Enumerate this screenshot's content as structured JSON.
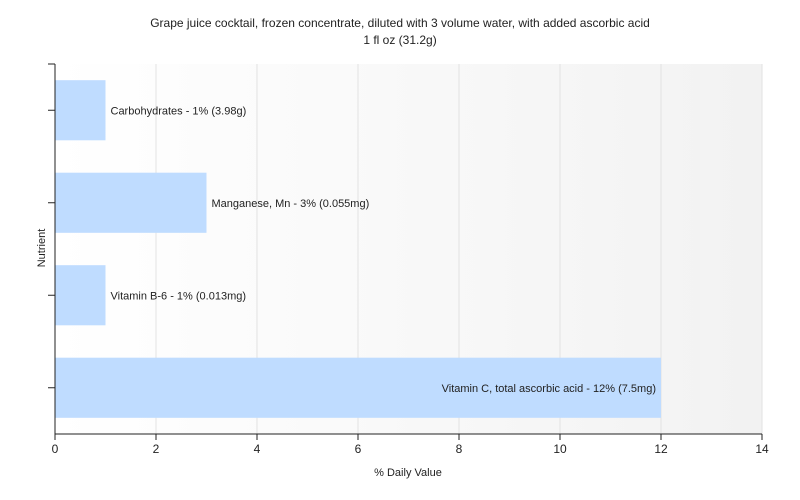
{
  "chart_data": {
    "type": "bar",
    "orientation": "horizontal",
    "title": "Grape juice cocktail, frozen concentrate, diluted with 3 volume water, with added ascorbic acid",
    "subtitle": "1 fl oz (31.2g)",
    "xlabel": "% Daily Value",
    "ylabel": "Nutrient",
    "xlim": [
      0,
      14
    ],
    "xticks": [
      0,
      2,
      4,
      6,
      8,
      10,
      12,
      14
    ],
    "grid": true,
    "categories": [
      "Carbohydrates",
      "Manganese, Mn",
      "Vitamin B-6",
      "Vitamin C, total ascorbic acid"
    ],
    "values": [
      1,
      3,
      1,
      12
    ],
    "labels": [
      "Carbohydrates - 1% (3.98g)",
      "Manganese, Mn - 3% (0.055mg)",
      "Vitamin B-6 - 1% (0.013mg)",
      "Vitamin C, total ascorbic acid - 12% (7.5mg)"
    ],
    "bar_color": "#bfdcff"
  }
}
